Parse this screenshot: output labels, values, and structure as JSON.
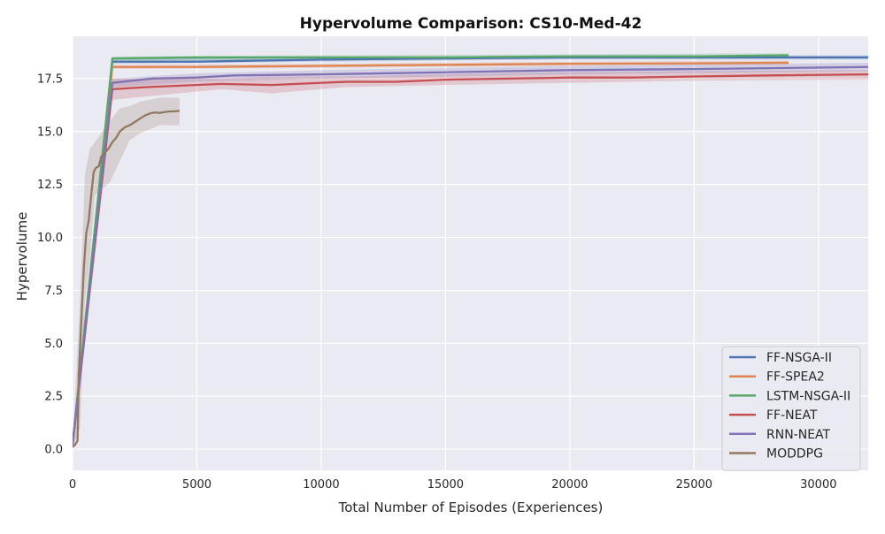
{
  "chart_data": {
    "type": "line",
    "title": "Hypervolume Comparison: CS10-Med-42",
    "xlabel": "Total Number of Episodes (Experiences)",
    "ylabel": "Hypervolume",
    "xlim": [
      0,
      32000
    ],
    "ylim": [
      -1.0,
      19.5
    ],
    "xticks": [
      0,
      5000,
      10000,
      15000,
      20000,
      25000,
      30000
    ],
    "xtick_labels": [
      "0",
      "5000",
      "10000",
      "15000",
      "20000",
      "25000",
      "30000"
    ],
    "yticks": [
      0.0,
      2.5,
      5.0,
      7.5,
      10.0,
      12.5,
      15.0,
      17.5
    ],
    "ytick_labels": [
      "0.0",
      "2.5",
      "5.0",
      "7.5",
      "10.0",
      "12.5",
      "15.0",
      "17.5"
    ],
    "grid": true,
    "legend_position": "lower-right",
    "colors": {
      "background": "#eaeaf2",
      "grid": "#ffffff",
      "legend_border": "#cccccc"
    },
    "series": [
      {
        "name": "FF-NSGA-II",
        "color": "#4c72b0",
        "points": [
          [
            0,
            0.2
          ],
          [
            1600,
            18.3
          ],
          [
            5000,
            18.3
          ],
          [
            10000,
            18.4
          ],
          [
            15000,
            18.45
          ],
          [
            20000,
            18.5
          ],
          [
            25000,
            18.5
          ],
          [
            32000,
            18.5
          ]
        ],
        "band": [
          [
            1600,
            18.2,
            18.45
          ],
          [
            10000,
            18.3,
            18.5
          ],
          [
            20000,
            18.4,
            18.6
          ],
          [
            32000,
            18.4,
            18.6
          ]
        ]
      },
      {
        "name": "FF-SPEA2",
        "color": "#dd8452",
        "points": [
          [
            0,
            0.2
          ],
          [
            1600,
            18.05
          ],
          [
            5000,
            18.05
          ],
          [
            10000,
            18.1
          ],
          [
            15000,
            18.15
          ],
          [
            20000,
            18.2
          ],
          [
            25000,
            18.22
          ],
          [
            28800,
            18.25
          ]
        ],
        "band": [
          [
            1600,
            17.95,
            18.15
          ],
          [
            10000,
            18.0,
            18.2
          ],
          [
            20000,
            18.1,
            18.3
          ],
          [
            28800,
            18.15,
            18.35
          ]
        ]
      },
      {
        "name": "LSTM-NSGA-II",
        "color": "#55a868",
        "points": [
          [
            0,
            0.2
          ],
          [
            1600,
            18.45
          ],
          [
            5000,
            18.5
          ],
          [
            10000,
            18.5
          ],
          [
            15000,
            18.5
          ],
          [
            20000,
            18.55
          ],
          [
            25000,
            18.55
          ],
          [
            28800,
            18.6
          ]
        ],
        "band": [
          [
            1600,
            18.35,
            18.55
          ],
          [
            10000,
            18.4,
            18.6
          ],
          [
            20000,
            18.45,
            18.65
          ],
          [
            28800,
            18.5,
            18.7
          ]
        ]
      },
      {
        "name": "FF-NEAT",
        "color": "#c44e52",
        "points": [
          [
            0,
            0.2
          ],
          [
            1600,
            17.0
          ],
          [
            3000,
            17.1
          ],
          [
            6000,
            17.25
          ],
          [
            8000,
            17.2
          ],
          [
            11000,
            17.35
          ],
          [
            13000,
            17.35
          ],
          [
            15000,
            17.45
          ],
          [
            20000,
            17.55
          ],
          [
            22500,
            17.55
          ],
          [
            25000,
            17.6
          ],
          [
            28000,
            17.65
          ],
          [
            32000,
            17.7
          ]
        ],
        "band": [
          [
            1600,
            16.5,
            17.5
          ],
          [
            6000,
            17.0,
            17.5
          ],
          [
            8000,
            16.8,
            17.6
          ],
          [
            11000,
            17.1,
            17.6
          ],
          [
            15000,
            17.2,
            17.7
          ],
          [
            20000,
            17.3,
            17.8
          ],
          [
            25000,
            17.4,
            17.85
          ],
          [
            32000,
            17.45,
            17.9
          ]
        ]
      },
      {
        "name": "RNN-NEAT",
        "color": "#8172b3",
        "points": [
          [
            0,
            0.2
          ],
          [
            1600,
            17.3
          ],
          [
            3200,
            17.5
          ],
          [
            5000,
            17.55
          ],
          [
            6500,
            17.65
          ],
          [
            10000,
            17.7
          ],
          [
            15000,
            17.8
          ],
          [
            20000,
            17.9
          ],
          [
            25000,
            17.95
          ],
          [
            32000,
            18.05
          ]
        ],
        "band": [
          [
            1600,
            17.1,
            17.5
          ],
          [
            5000,
            17.35,
            17.75
          ],
          [
            10000,
            17.5,
            17.9
          ],
          [
            20000,
            17.7,
            18.1
          ],
          [
            32000,
            17.85,
            18.25
          ]
        ]
      },
      {
        "name": "MODDPG",
        "color": "#937860",
        "points": [
          [
            0,
            0.1
          ],
          [
            100,
            0.2
          ],
          [
            200,
            0.4
          ],
          [
            250,
            3.5
          ],
          [
            350,
            6.0
          ],
          [
            450,
            8.5
          ],
          [
            550,
            10.2
          ],
          [
            650,
            10.8
          ],
          [
            750,
            12.0
          ],
          [
            850,
            13.1
          ],
          [
            950,
            13.3
          ],
          [
            1050,
            13.35
          ],
          [
            1150,
            13.8
          ],
          [
            1300,
            14.0
          ],
          [
            1450,
            14.2
          ],
          [
            1600,
            14.5
          ],
          [
            1750,
            14.7
          ],
          [
            1900,
            15.0
          ],
          [
            2100,
            15.2
          ],
          [
            2300,
            15.3
          ],
          [
            2500,
            15.45
          ],
          [
            2700,
            15.6
          ],
          [
            2900,
            15.75
          ],
          [
            3100,
            15.85
          ],
          [
            3300,
            15.9
          ],
          [
            3500,
            15.88
          ],
          [
            3700,
            15.92
          ],
          [
            3900,
            15.95
          ],
          [
            4100,
            15.95
          ],
          [
            4300,
            15.98
          ]
        ],
        "band": [
          [
            0,
            0.0,
            0.3
          ],
          [
            300,
            1.0,
            7.0
          ],
          [
            500,
            7.0,
            13.0
          ],
          [
            700,
            9.0,
            14.2
          ],
          [
            900,
            12.0,
            14.5
          ],
          [
            1200,
            12.3,
            15.0
          ],
          [
            1500,
            12.6,
            15.5
          ],
          [
            1900,
            13.6,
            16.1
          ],
          [
            2300,
            14.6,
            16.2
          ],
          [
            2700,
            14.9,
            16.4
          ],
          [
            3100,
            15.1,
            16.5
          ],
          [
            3500,
            15.3,
            16.6
          ],
          [
            4000,
            15.3,
            16.6
          ],
          [
            4300,
            15.3,
            16.6
          ]
        ]
      }
    ]
  }
}
